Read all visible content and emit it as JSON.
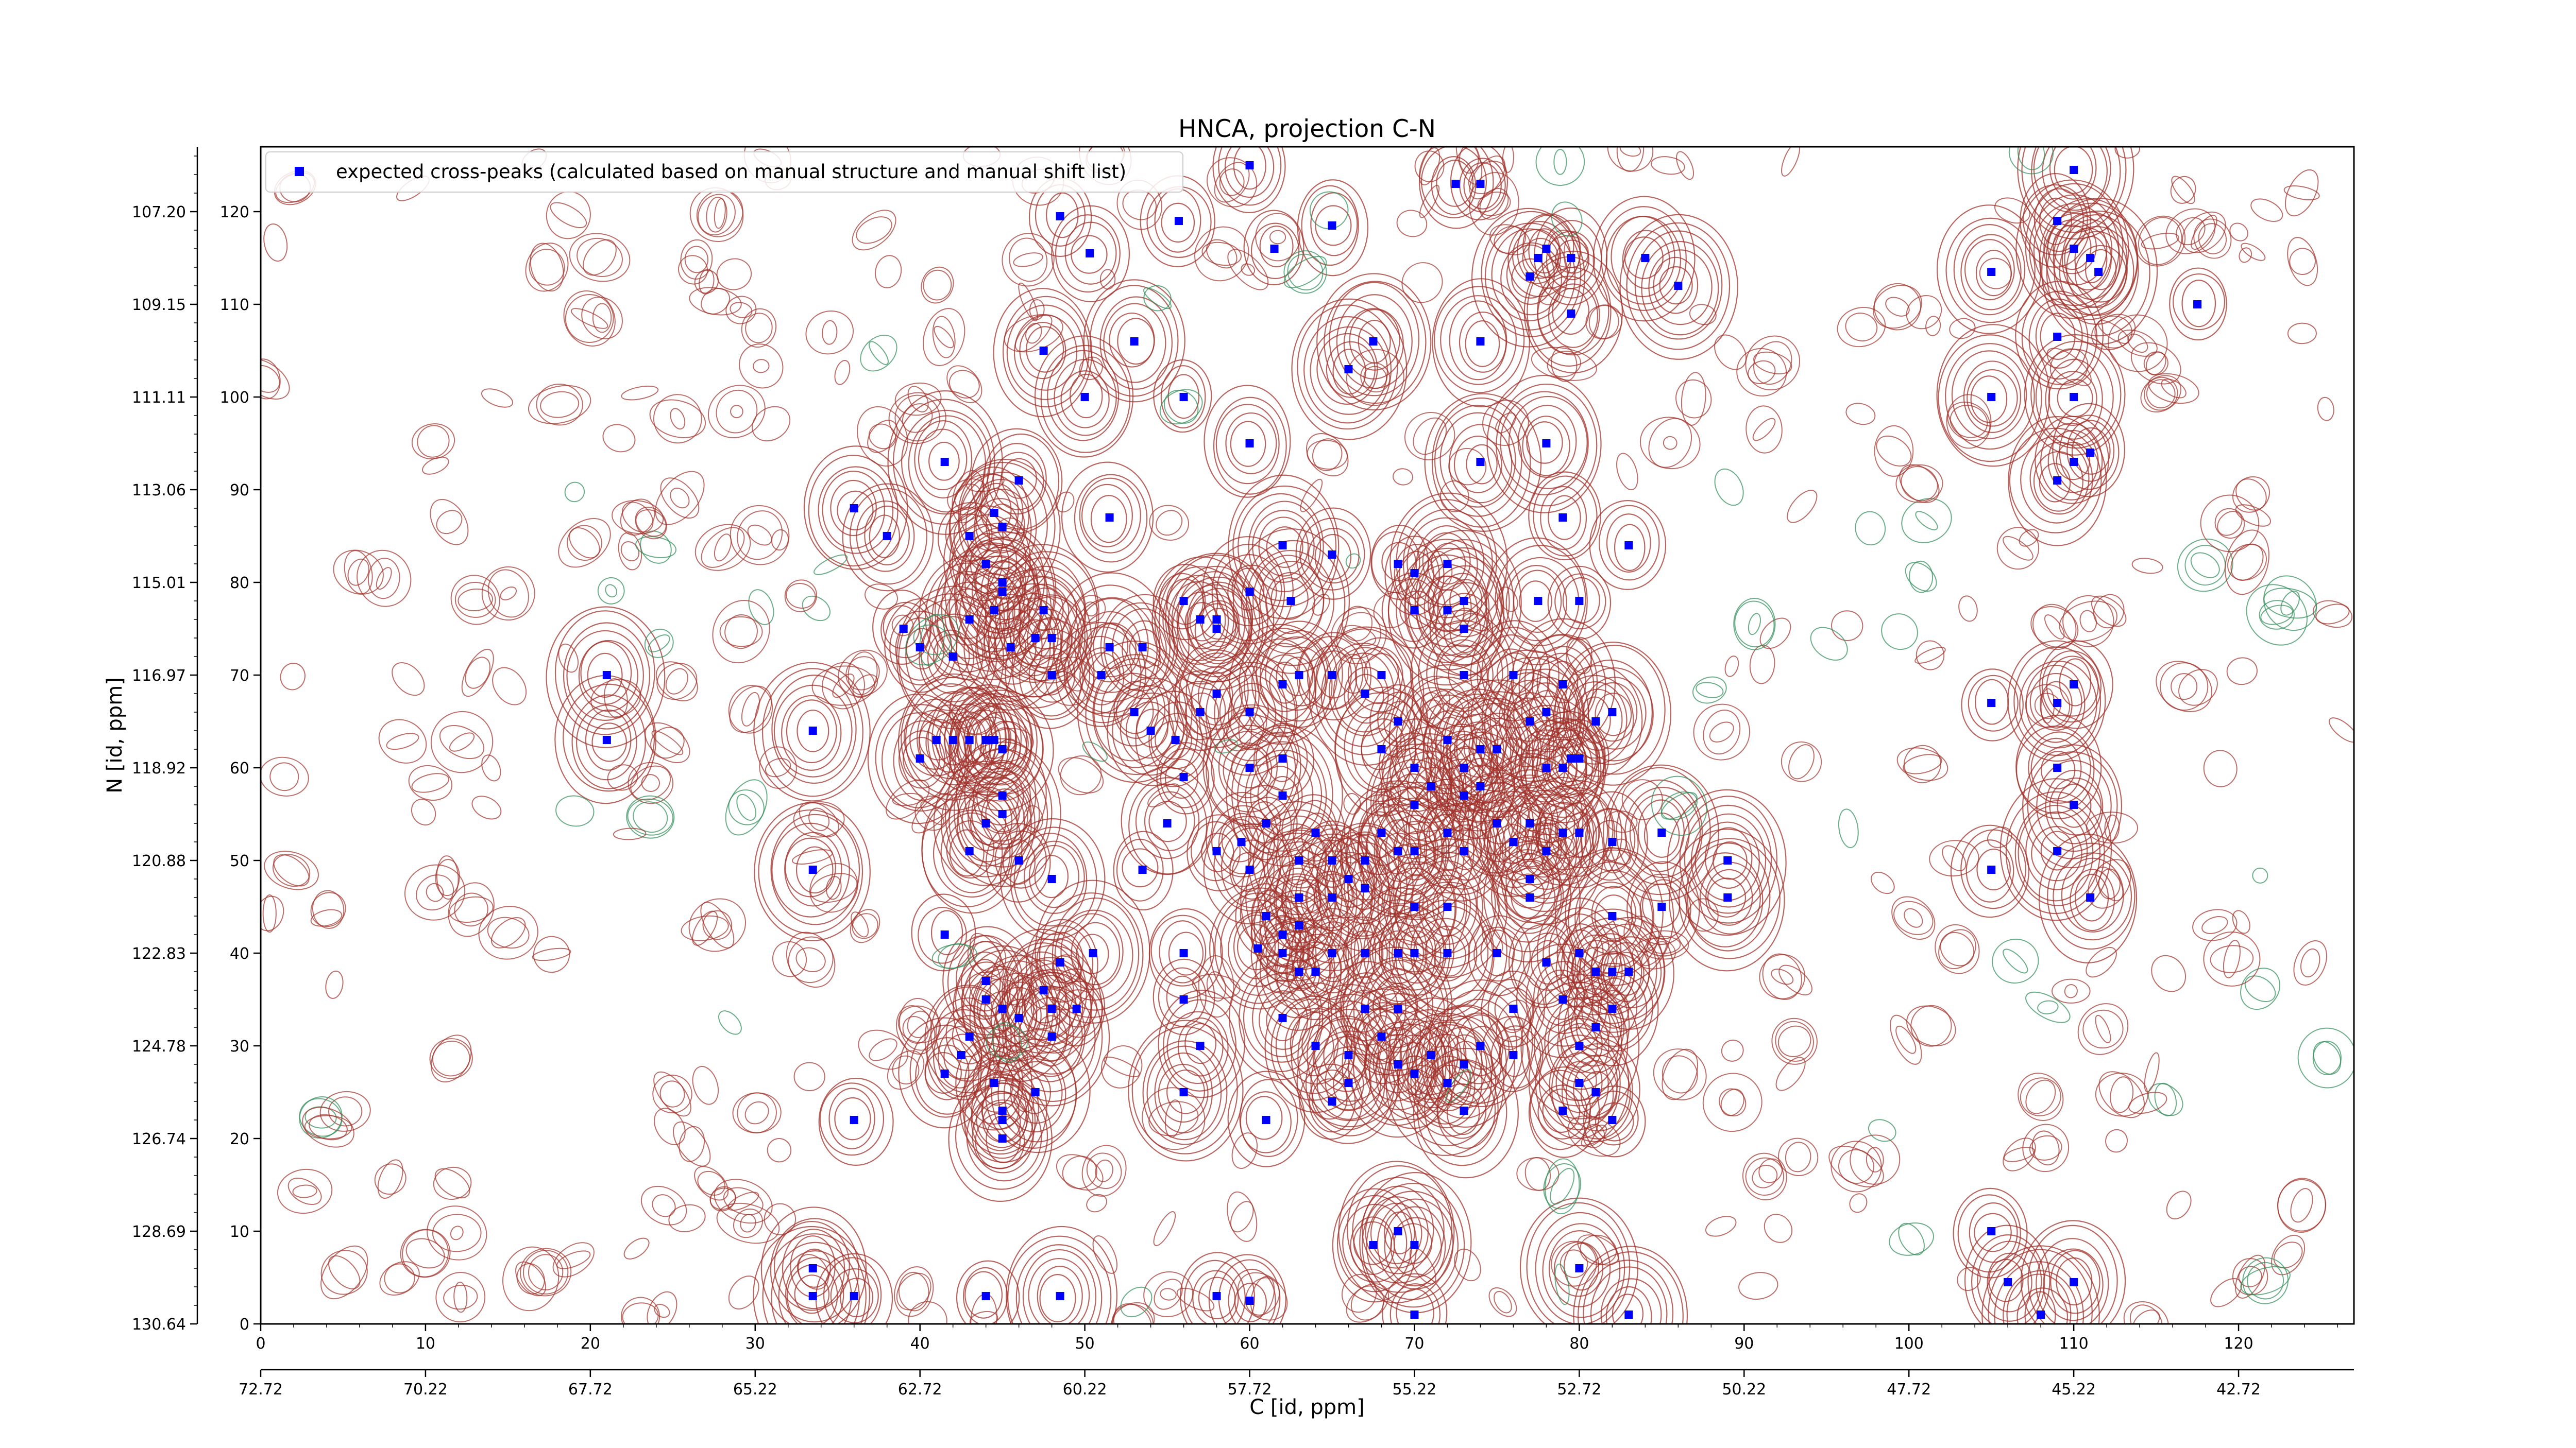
{
  "chart_data": {
    "type": "scatter",
    "title": "HNCA, projection C-N",
    "xlabel": "C [id, ppm]",
    "ylabel": "N [id, ppm]",
    "xlim": [
      0,
      127
    ],
    "ylim": [
      0,
      127
    ],
    "x_ticks": [
      "0",
      "10",
      "20",
      "30",
      "40",
      "50",
      "60",
      "70",
      "80",
      "90",
      "100",
      "110",
      "120"
    ],
    "y_ticks": [
      "0",
      "10",
      "20",
      "30",
      "40",
      "50",
      "60",
      "70",
      "80",
      "90",
      "100",
      "110",
      "120"
    ],
    "x_ppm_ticks": [
      "72.72",
      "70.22",
      "67.72",
      "65.22",
      "62.72",
      "60.22",
      "57.72",
      "55.22",
      "52.72",
      "50.22",
      "47.72",
      "45.22",
      "42.72"
    ],
    "y_ppm_ticks": [
      "130.64",
      "128.69",
      "126.74",
      "124.78",
      "122.83",
      "120.88",
      "118.92",
      "116.97",
      "115.01",
      "113.06",
      "111.11",
      "109.15",
      "107.20"
    ],
    "grid": false,
    "legend_position": "top-left",
    "colors": {
      "peaks": "#0000ff",
      "positive_contour": "#a0302a",
      "negative_contour": "#2e8b57"
    },
    "series": [
      {
        "name": "expected cross-peaks (calculated based on manual structure and manual shift list)",
        "points": [
          [
            48.5,
            119.5
          ],
          [
            50.3,
            115.5
          ],
          [
            55.7,
            119
          ],
          [
            61.5,
            116
          ],
          [
            60,
            125
          ],
          [
            72.5,
            123
          ],
          [
            74,
            123
          ],
          [
            65,
            118.5
          ],
          [
            77.5,
            115
          ],
          [
            78,
            116
          ],
          [
            79.5,
            115
          ],
          [
            77,
            113
          ],
          [
            79.5,
            109
          ],
          [
            84,
            115
          ],
          [
            86,
            112
          ],
          [
            110,
            124.5
          ],
          [
            109,
            119
          ],
          [
            110,
            116
          ],
          [
            111,
            115
          ],
          [
            111.5,
            113.5
          ],
          [
            105,
            113.5
          ],
          [
            117.5,
            110
          ],
          [
            47.5,
            105
          ],
          [
            53,
            106
          ],
          [
            50,
            100
          ],
          [
            56,
            100
          ],
          [
            60,
            95
          ],
          [
            67.5,
            106
          ],
          [
            66,
            103
          ],
          [
            74,
            106
          ],
          [
            74,
            93
          ],
          [
            78,
            95
          ],
          [
            105,
            100
          ],
          [
            109,
            106.5
          ],
          [
            110,
            100
          ],
          [
            110,
            93
          ],
          [
            111,
            94
          ],
          [
            109,
            91
          ],
          [
            36,
            88
          ],
          [
            38,
            85
          ],
          [
            41.5,
            93
          ],
          [
            44.5,
            87.5
          ],
          [
            45,
            86
          ],
          [
            46,
            91
          ],
          [
            51.5,
            87
          ],
          [
            62,
            84
          ],
          [
            60,
            79
          ],
          [
            62.5,
            78
          ],
          [
            65,
            83
          ],
          [
            69,
            82
          ],
          [
            70,
            81
          ],
          [
            70,
            77
          ],
          [
            72,
            82
          ],
          [
            72,
            77
          ],
          [
            73,
            78
          ],
          [
            73,
            75
          ],
          [
            77.5,
            78
          ],
          [
            80,
            78
          ],
          [
            79,
            87
          ],
          [
            83,
            84
          ],
          [
            43,
            85
          ],
          [
            44,
            82
          ],
          [
            45,
            80
          ],
          [
            45,
            79
          ],
          [
            44.5,
            77
          ],
          [
            43,
            76
          ],
          [
            39,
            75
          ],
          [
            42,
            72
          ],
          [
            47,
            74
          ],
          [
            48,
            74
          ],
          [
            47.5,
            77
          ],
          [
            48,
            70
          ],
          [
            45.5,
            73
          ],
          [
            40,
            73
          ],
          [
            56,
            78
          ],
          [
            57,
            76
          ],
          [
            58,
            76
          ],
          [
            58,
            75
          ],
          [
            51.5,
            73
          ],
          [
            53.5,
            73
          ],
          [
            51,
            70
          ],
          [
            53,
            66
          ],
          [
            54,
            64
          ],
          [
            57,
            66
          ],
          [
            58,
            68
          ],
          [
            60,
            66
          ],
          [
            62,
            69
          ],
          [
            62,
            61
          ],
          [
            63,
            70
          ],
          [
            65,
            70
          ],
          [
            67,
            68
          ],
          [
            68,
            70
          ],
          [
            68,
            62
          ],
          [
            69,
            65
          ],
          [
            70,
            60
          ],
          [
            72,
            63
          ],
          [
            73,
            70
          ],
          [
            73,
            60
          ],
          [
            74,
            62
          ],
          [
            76,
            70
          ],
          [
            77,
            65
          ],
          [
            78,
            66
          ],
          [
            79,
            69
          ],
          [
            79.5,
            61
          ],
          [
            80,
            61
          ],
          [
            81,
            65
          ],
          [
            82,
            66
          ],
          [
            78,
            60
          ],
          [
            79,
            60
          ],
          [
            40,
            61
          ],
          [
            42,
            63
          ],
          [
            43,
            63
          ],
          [
            44,
            63
          ],
          [
            44.5,
            63
          ],
          [
            45,
            62
          ],
          [
            45,
            57
          ],
          [
            45,
            55
          ],
          [
            44,
            54
          ],
          [
            46,
            50
          ],
          [
            48,
            48
          ],
          [
            43,
            51
          ],
          [
            41,
            63
          ],
          [
            53.5,
            49
          ],
          [
            55,
            54
          ],
          [
            56,
            59
          ],
          [
            61,
            54
          ],
          [
            62,
            57
          ],
          [
            60,
            49
          ],
          [
            63,
            50
          ],
          [
            63,
            46
          ],
          [
            65,
            50
          ],
          [
            67,
            50
          ],
          [
            67,
            47
          ],
          [
            68,
            53
          ],
          [
            69,
            51
          ],
          [
            70,
            51
          ],
          [
            70,
            45
          ],
          [
            72,
            53
          ],
          [
            72,
            45
          ],
          [
            73,
            51
          ],
          [
            73,
            57
          ],
          [
            74,
            58
          ],
          [
            75,
            54
          ],
          [
            77,
            48
          ],
          [
            77,
            54
          ],
          [
            77,
            46
          ],
          [
            79,
            53
          ],
          [
            80,
            53
          ],
          [
            82,
            52
          ],
          [
            82,
            44
          ],
          [
            85,
            45
          ],
          [
            85,
            53
          ],
          [
            33.5,
            64
          ],
          [
            33.5,
            49
          ],
          [
            21,
            70
          ],
          [
            21,
            63
          ],
          [
            89,
            50
          ],
          [
            89,
            46
          ],
          [
            105,
            67
          ],
          [
            109,
            67
          ],
          [
            110,
            69
          ],
          [
            109,
            60
          ],
          [
            110,
            56
          ],
          [
            109,
            51
          ],
          [
            105,
            49
          ],
          [
            111,
            46
          ],
          [
            41.5,
            42
          ],
          [
            44,
            37
          ],
          [
            44,
            35
          ],
          [
            45,
            34
          ],
          [
            47.5,
            36
          ],
          [
            48,
            34
          ],
          [
            48.5,
            39
          ],
          [
            49.5,
            34
          ],
          [
            50.5,
            40
          ],
          [
            46,
            33
          ],
          [
            43,
            31
          ],
          [
            42.5,
            29
          ],
          [
            41.5,
            27
          ],
          [
            44.5,
            26
          ],
          [
            47,
            25
          ],
          [
            48,
            31
          ],
          [
            45,
            23
          ],
          [
            45,
            22
          ],
          [
            45,
            20
          ],
          [
            56,
            40
          ],
          [
            56,
            35
          ],
          [
            57,
            30
          ],
          [
            62,
            40
          ],
          [
            63,
            38
          ],
          [
            64,
            38
          ],
          [
            65,
            40
          ],
          [
            67,
            40
          ],
          [
            69,
            40
          ],
          [
            70,
            40
          ],
          [
            72,
            40
          ],
          [
            75,
            40
          ],
          [
            78,
            39
          ],
          [
            80,
            40
          ],
          [
            81,
            38
          ],
          [
            82,
            38
          ],
          [
            83,
            38
          ],
          [
            76,
            34
          ],
          [
            79,
            35
          ],
          [
            82,
            34
          ],
          [
            74,
            30
          ],
          [
            73,
            28
          ],
          [
            72,
            26
          ],
          [
            73,
            23
          ],
          [
            76,
            29
          ],
          [
            80,
            30
          ],
          [
            80,
            26
          ],
          [
            81,
            25
          ],
          [
            82,
            22
          ],
          [
            79,
            23
          ],
          [
            81,
            32
          ],
          [
            62,
            33
          ],
          [
            64,
            30
          ],
          [
            66,
            29
          ],
          [
            68,
            31
          ],
          [
            69,
            28
          ],
          [
            70,
            27
          ],
          [
            71,
            29
          ],
          [
            65,
            24
          ],
          [
            66,
            26
          ],
          [
            56,
            25
          ],
          [
            61,
            22
          ],
          [
            67,
            34
          ],
          [
            69,
            34
          ],
          [
            36,
            22
          ],
          [
            33.5,
            6
          ],
          [
            33.5,
            3
          ],
          [
            36,
            3
          ],
          [
            44,
            3
          ],
          [
            48.5,
            3
          ],
          [
            58,
            3
          ],
          [
            60,
            2.5
          ],
          [
            67.5,
            8.5
          ],
          [
            69,
            10
          ],
          [
            70,
            8.5
          ],
          [
            70,
            1
          ],
          [
            80,
            6
          ],
          [
            83,
            1
          ],
          [
            105,
            10
          ],
          [
            106,
            4.5
          ],
          [
            108,
            1
          ],
          [
            110,
            4.5
          ],
          [
            60.5,
            40.5
          ],
          [
            61,
            44
          ],
          [
            62,
            42
          ],
          [
            63,
            43
          ],
          [
            59.5,
            52
          ],
          [
            58,
            51
          ],
          [
            70,
            56
          ],
          [
            71,
            58
          ],
          [
            75,
            62
          ],
          [
            76,
            52
          ],
          [
            78,
            51
          ],
          [
            65,
            46
          ],
          [
            66,
            48
          ],
          [
            64,
            53
          ],
          [
            60,
            60
          ],
          [
            55.5,
            63
          ]
        ]
      }
    ]
  }
}
